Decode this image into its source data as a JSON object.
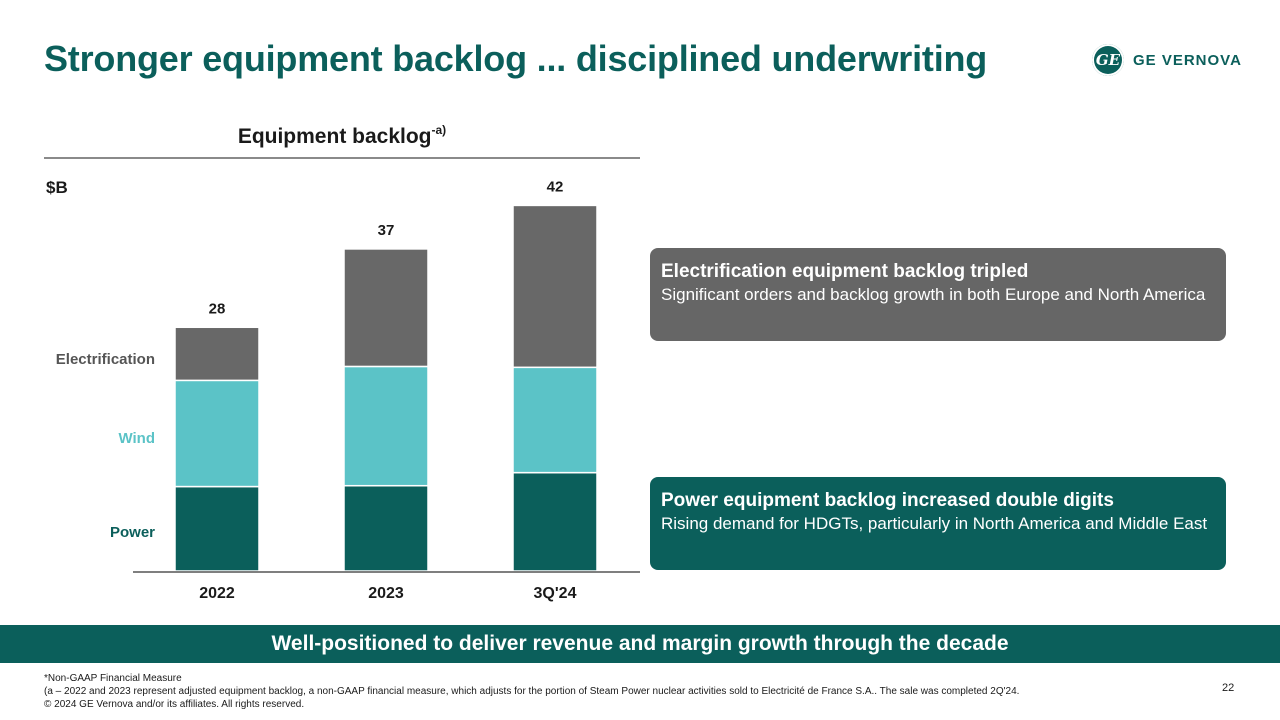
{
  "header": {
    "title": "Stronger equipment backlog ... disciplined underwriting",
    "logo_text": "GE VERNOVA",
    "logo_mark": "GE"
  },
  "chart_data": {
    "type": "bar",
    "stacked": true,
    "title": "Equipment backlog",
    "title_superscript": "-a)",
    "ylabel": "$B",
    "categories": [
      "2022",
      "2023",
      "3Q'24"
    ],
    "totals": [
      28,
      37,
      42
    ],
    "series": [
      {
        "name": "Power",
        "color": "#0b5f5b",
        "values": [
          9.7,
          9.8,
          11.3
        ]
      },
      {
        "name": "Wind",
        "color": "#5bc3c7",
        "values": [
          12.2,
          13.7,
          12.1
        ]
      },
      {
        "name": "Electrification",
        "color": "#686868",
        "values": [
          6.1,
          13.5,
          18.6
        ]
      }
    ],
    "ylim": [
      0,
      44
    ],
    "grid": false,
    "legend": "left-inline"
  },
  "callouts": [
    {
      "title": "Electrification equipment backlog tripled",
      "text": "Significant orders and backlog growth in both Europe and North America"
    },
    {
      "title": "Power equipment backlog increased double digits",
      "text": "Rising demand for HDGTs, particularly in North America and Middle East"
    }
  ],
  "banner": "Well-positioned to deliver revenue and margin growth through the decade",
  "footnotes": [
    "*Non-GAAP Financial Measure",
    "(a – 2022 and 2023 represent adjusted equipment backlog, a non-GAAP financial measure, which adjusts for the portion of Steam Power nuclear activities sold to Electricité de France S.A.. The sale was completed 2Q'24.",
    "© 2024 GE Vernova and/or its affiliates. All rights reserved."
  ],
  "page_number": "22"
}
